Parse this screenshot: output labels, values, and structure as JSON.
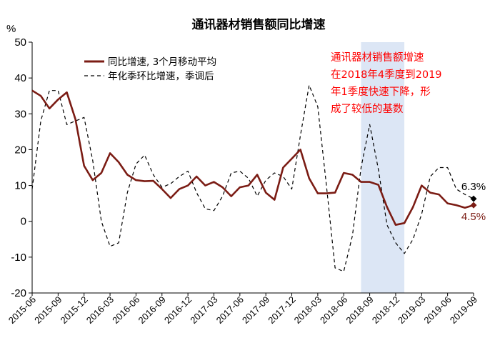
{
  "chart_data": {
    "type": "line",
    "title": "通讯器材销售额同比增速",
    "yunit": "%",
    "ylim": [
      -20,
      50
    ],
    "yticks": [
      "50",
      "40",
      "30",
      "20",
      "10",
      "0",
      "-10",
      "-20"
    ],
    "xticks": [
      "2015-06",
      "2015-09",
      "2015-12",
      "2016-03",
      "2016-06",
      "2016-09",
      "2016-12",
      "2017-03",
      "2017-06",
      "2017-09",
      "2017-12",
      "2018-03",
      "2018-06",
      "2018-09",
      "2018-12",
      "2019-03",
      "2019-06",
      "2019-09"
    ],
    "x": [
      "2015-06",
      "2015-07",
      "2015-08",
      "2015-09",
      "2015-10",
      "2015-11",
      "2015-12",
      "2016-01",
      "2016-02",
      "2016-03",
      "2016-04",
      "2016-05",
      "2016-06",
      "2016-07",
      "2016-08",
      "2016-09",
      "2016-10",
      "2016-11",
      "2016-12",
      "2017-01",
      "2017-02",
      "2017-03",
      "2017-04",
      "2017-05",
      "2017-06",
      "2017-07",
      "2017-08",
      "2017-09",
      "2017-10",
      "2017-11",
      "2017-12",
      "2018-01",
      "2018-02",
      "2018-03",
      "2018-04",
      "2018-05",
      "2018-06",
      "2018-07",
      "2018-08",
      "2018-09",
      "2018-10",
      "2018-11",
      "2018-12",
      "2019-01",
      "2019-02",
      "2019-03",
      "2019-04",
      "2019-05",
      "2019-06",
      "2019-07",
      "2019-08",
      "2019-09"
    ],
    "series": [
      {
        "name": "同比增速, 3个月移动平均",
        "color": "#7b1c14",
        "style": "solid",
        "values": [
          36.5,
          35,
          31.5,
          34,
          36,
          28.5,
          15.5,
          11.5,
          13.5,
          19,
          16.5,
          13,
          11.5,
          11.2,
          11.3,
          9,
          6.5,
          9,
          10,
          12.5,
          10,
          11,
          9.5,
          7,
          9.5,
          10,
          13,
          8,
          6,
          15,
          17.5,
          20,
          12,
          7.8,
          7.8,
          8,
          13.5,
          13,
          11,
          11,
          10.2,
          4,
          -1,
          -0.5,
          4,
          10,
          8,
          7.5,
          5,
          4.5,
          3.8,
          4.5
        ]
      },
      {
        "name": "年化季环比增速，季调后",
        "color": "#000000",
        "style": "dashed",
        "values": [
          9,
          28,
          36.5,
          36.5,
          27,
          28,
          29,
          17,
          0,
          -7,
          -6,
          8,
          16,
          18.5,
          13,
          9.5,
          10.5,
          12.5,
          14,
          8,
          3.5,
          3,
          7,
          13.5,
          14,
          12,
          7,
          11.5,
          13.5,
          12.5,
          9,
          24,
          38,
          32,
          10,
          -13,
          -14,
          -4,
          15,
          27,
          14.5,
          -1,
          -6,
          -9,
          -5,
          2,
          12.5,
          15,
          15,
          9,
          7.5,
          6.3
        ]
      }
    ],
    "shaded_region": {
      "from": "2018-08",
      "to": "2019-01",
      "color": "#dce6f5"
    },
    "end_labels": [
      {
        "text": "6.3%",
        "series": 1,
        "color": "#000000"
      },
      {
        "text": "4.5%",
        "series": 0,
        "color": "#7b1c14"
      }
    ],
    "annotation": [
      "通讯器材销售额增速",
      "在2018年4季度到2019",
      "年1季度快速下降，形",
      "成了较低的基数"
    ],
    "legend_position": "top-left",
    "grid": false
  }
}
